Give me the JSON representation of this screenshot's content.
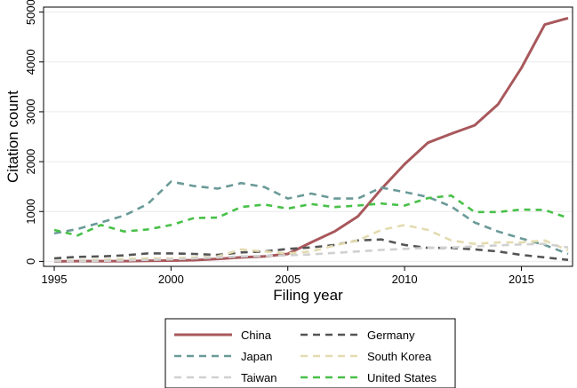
{
  "chart_data": {
    "type": "line",
    "title": "",
    "xlabel": "Filing year",
    "ylabel": "Citation count",
    "xlim": [
      1995,
      2017
    ],
    "ylim": [
      -100,
      5100
    ],
    "xticks": [
      1995,
      2000,
      2005,
      2010,
      2015
    ],
    "xtick_labels": [
      "1995",
      "2000",
      "2005",
      "2010",
      "2015"
    ],
    "yticks": [
      0,
      1000,
      2000,
      3000,
      4000,
      5000
    ],
    "ytick_labels": [
      "0",
      "1000",
      "2000",
      "3000",
      "4000",
      "5000"
    ],
    "grid": "horizontal",
    "legend_position": "bottom",
    "x": [
      1995,
      1996,
      1997,
      1998,
      1999,
      2000,
      2001,
      2002,
      2003,
      2004,
      2005,
      2006,
      2007,
      2008,
      2009,
      2010,
      2011,
      2012,
      2013,
      2014,
      2015,
      2016,
      2017
    ],
    "series": [
      {
        "name": "China",
        "color": "#a8585c",
        "style": "solid",
        "values": [
          0,
          5,
          5,
          5,
          10,
          15,
          25,
          50,
          80,
          100,
          150,
          380,
          600,
          900,
          1450,
          1950,
          2380,
          2560,
          2730,
          3150,
          3880,
          4750,
          4880
        ]
      },
      {
        "name": "Germany",
        "color": "#555555",
        "style": "dashed",
        "values": [
          60,
          90,
          100,
          120,
          160,
          160,
          150,
          130,
          180,
          200,
          250,
          280,
          330,
          420,
          440,
          330,
          270,
          270,
          240,
          200,
          130,
          80,
          30
        ]
      },
      {
        "name": "Japan",
        "color": "#6a9a98",
        "style": "dashed",
        "values": [
          560,
          650,
          780,
          920,
          1150,
          1600,
          1510,
          1460,
          1570,
          1490,
          1260,
          1360,
          1260,
          1260,
          1480,
          1390,
          1290,
          1100,
          780,
          600,
          460,
          330,
          150
        ]
      },
      {
        "name": "South Korea",
        "color": "#e3dbb0",
        "style": "dashed",
        "values": [
          10,
          20,
          30,
          50,
          60,
          60,
          80,
          100,
          240,
          200,
          160,
          200,
          320,
          420,
          630,
          730,
          630,
          420,
          350,
          380,
          380,
          420,
          220
        ]
      },
      {
        "name": "Taiwan",
        "color": "#d0d0d0",
        "style": "dashed",
        "values": [
          5,
          5,
          10,
          20,
          30,
          40,
          60,
          80,
          100,
          110,
          120,
          140,
          170,
          200,
          230,
          250,
          270,
          280,
          300,
          320,
          340,
          350,
          280
        ]
      },
      {
        "name": "United States",
        "color": "#48c048",
        "style": "dashed",
        "values": [
          630,
          520,
          730,
          600,
          640,
          730,
          870,
          880,
          1090,
          1140,
          1060,
          1150,
          1090,
          1120,
          1160,
          1120,
          1270,
          1320,
          990,
          990,
          1040,
          1030,
          870
        ]
      }
    ]
  }
}
